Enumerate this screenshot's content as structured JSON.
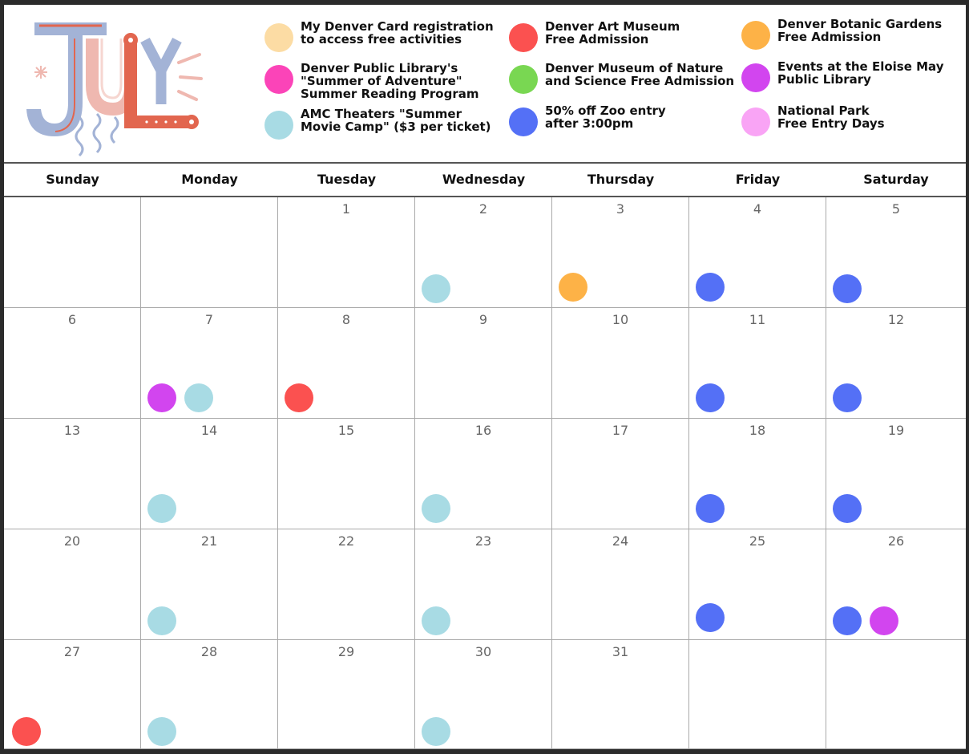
{
  "month": {
    "title": "JULY"
  },
  "colors": {
    "denver_card": "#fcdca4",
    "art_museum": "#fb5150",
    "botanic": "#fdb247",
    "library_summer": "#fb44b8",
    "nature_science": "#79d752",
    "eloise": "#d245ef",
    "amc": "#a8dbe4",
    "zoo": "#5470f6",
    "national_park": "#f9a4f5"
  },
  "legend": [
    {
      "text": "My Denver Card registration\nto access free activities",
      "color": "#fcdca4"
    },
    {
      "text": "Denver Art Museum\nFree Admission",
      "color": "#fb5150"
    },
    {
      "text": "Denver Botanic Gardens\nFree Admission",
      "color": "#fdb247"
    },
    {
      "text": "Denver Public Library's\n\"Summer of Adventure\"\nSummer Reading Program",
      "color": "#fb44b8"
    },
    {
      "text": "Denver Museum of Nature\nand Science Free Admission",
      "color": "#79d752"
    },
    {
      "text": "Events at the Eloise May\nPublic Library",
      "color": "#d245ef"
    },
    {
      "text": "AMC Theaters \"Summer\nMovie Camp\" ($3 per ticket)",
      "color": "#a8dbe4"
    },
    {
      "text": "50% off Zoo entry\nafter 3:00pm",
      "color": "#5470f6"
    },
    {
      "text": "National Park\nFree Entry Days",
      "color": "#f9a4f5"
    }
  ],
  "weekdays": [
    "Sunday",
    "Monday",
    "Tuesday",
    "Wednesday",
    "Thursday",
    "Friday",
    "Saturday"
  ],
  "weeks": [
    [
      {
        "day": "",
        "events": []
      },
      {
        "day": "",
        "events": []
      },
      {
        "day": "1",
        "events": []
      },
      {
        "day": "2",
        "events": [
          "amc"
        ]
      },
      {
        "day": "3",
        "events": [
          "botanic"
        ]
      },
      {
        "day": "4",
        "events": [
          "zoo"
        ]
      },
      {
        "day": "5",
        "events": [
          "zoo"
        ]
      }
    ],
    [
      {
        "day": "6",
        "events": []
      },
      {
        "day": "7",
        "events": [
          "eloise",
          "amc"
        ]
      },
      {
        "day": "8",
        "events": [
          "art_museum"
        ]
      },
      {
        "day": "9",
        "events": []
      },
      {
        "day": "10",
        "events": []
      },
      {
        "day": "11",
        "events": [
          "zoo"
        ]
      },
      {
        "day": "12",
        "events": [
          "zoo"
        ]
      }
    ],
    [
      {
        "day": "13",
        "events": []
      },
      {
        "day": "14",
        "events": [
          "amc"
        ]
      },
      {
        "day": "15",
        "events": []
      },
      {
        "day": "16",
        "events": [
          "amc"
        ]
      },
      {
        "day": "17",
        "events": []
      },
      {
        "day": "18",
        "events": [
          "zoo"
        ]
      },
      {
        "day": "19",
        "events": [
          "zoo"
        ]
      }
    ],
    [
      {
        "day": "20",
        "events": []
      },
      {
        "day": "21",
        "events": [
          "amc"
        ]
      },
      {
        "day": "22",
        "events": []
      },
      {
        "day": "23",
        "events": [
          "amc"
        ]
      },
      {
        "day": "24",
        "events": []
      },
      {
        "day": "25",
        "events": [
          "zoo"
        ]
      },
      {
        "day": "26",
        "events": [
          "zoo",
          "eloise"
        ]
      }
    ],
    [
      {
        "day": "27",
        "events": [
          "art_museum"
        ]
      },
      {
        "day": "28",
        "events": [
          "amc"
        ]
      },
      {
        "day": "29",
        "events": []
      },
      {
        "day": "30",
        "events": [
          "amc"
        ]
      },
      {
        "day": "31",
        "events": []
      },
      {
        "day": "",
        "events": []
      },
      {
        "day": "",
        "events": []
      }
    ]
  ]
}
